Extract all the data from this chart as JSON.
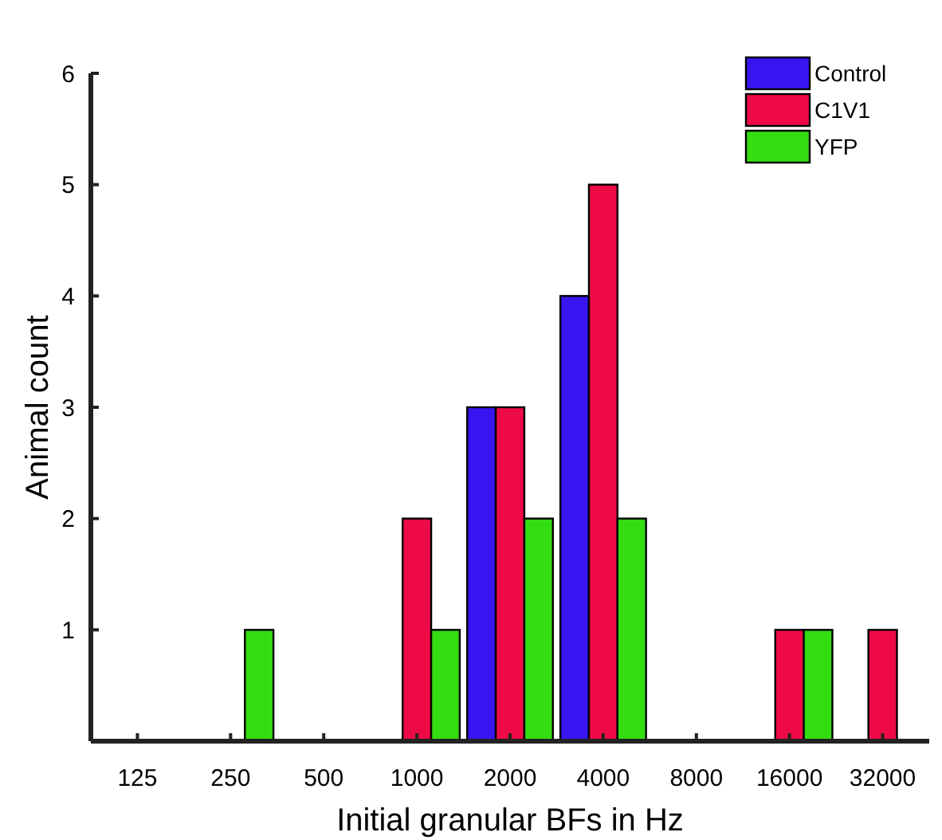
{
  "chart_data": {
    "type": "bar",
    "xlabel": "Initial granular BFs in Hz",
    "ylabel": "Animal count",
    "categories": [
      "125",
      "250",
      "500",
      "1000",
      "2000",
      "4000",
      "8000",
      "16000",
      "32000"
    ],
    "series": [
      {
        "name": "Control",
        "color": "#3a14f0",
        "values": [
          0,
          0,
          0,
          0,
          3,
          4,
          0,
          0,
          0
        ]
      },
      {
        "name": "C1V1",
        "color": "#ee0a46",
        "values": [
          0,
          0,
          0,
          2,
          3,
          5,
          0,
          1,
          1
        ]
      },
      {
        "name": "YFP",
        "color": "#33dd11",
        "values": [
          0,
          1,
          0,
          1,
          2,
          2,
          0,
          1,
          0
        ]
      }
    ],
    "ylim": [
      0,
      6
    ],
    "yticks": [
      1,
      2,
      3,
      4,
      5,
      6
    ],
    "legend": "top right",
    "grid": false
  }
}
